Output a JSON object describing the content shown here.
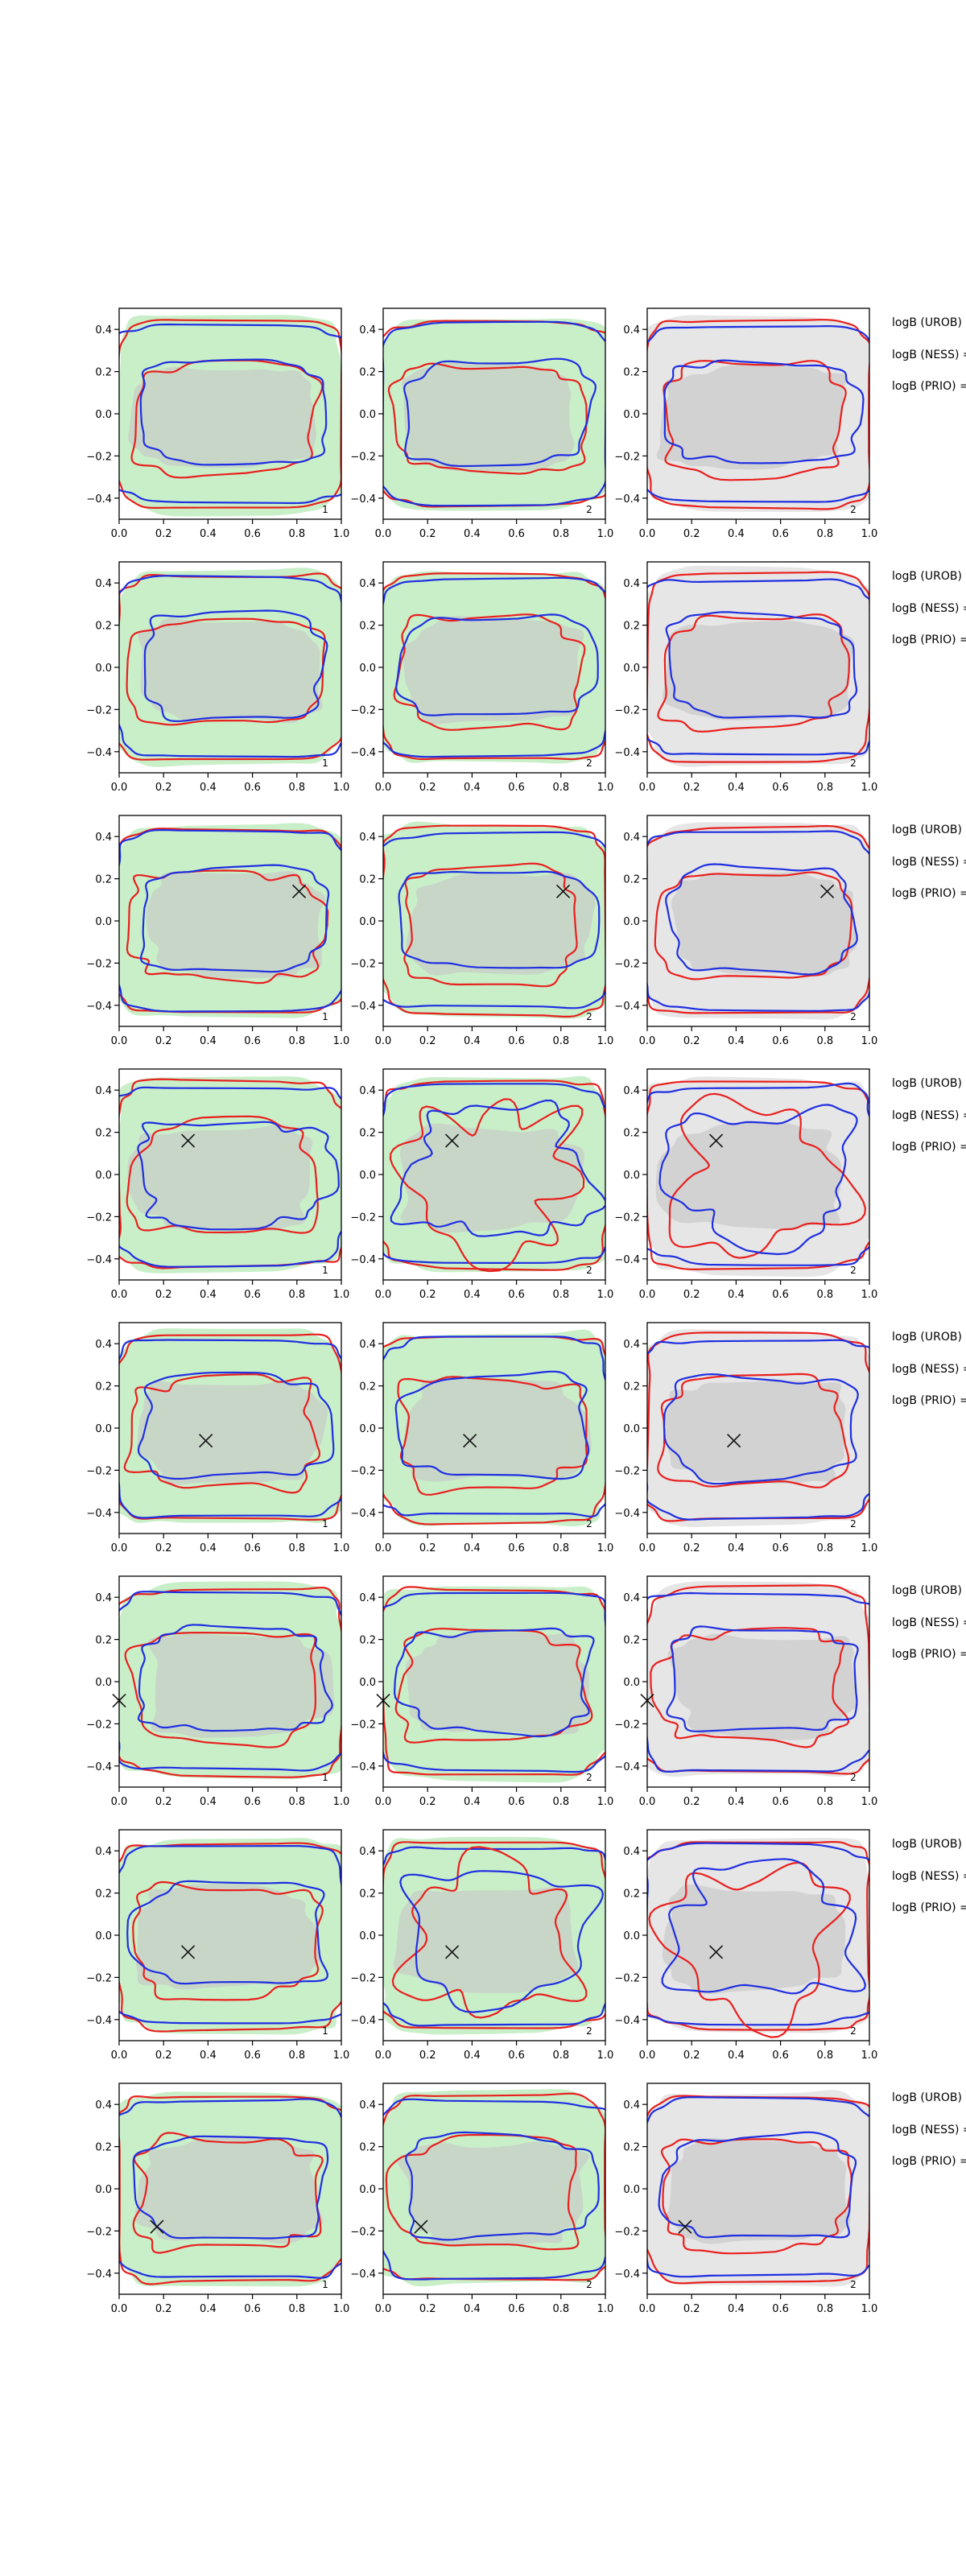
{
  "colors": {
    "shade_green": "#c9efc9",
    "shade_gray": "#e6e6e6",
    "inner_gray": "#c8c8c8",
    "contour_red": "#e8201e",
    "contour_blue": "#1f2fe0",
    "marker": "#111111",
    "axis": "#000000"
  },
  "chart_data": {
    "type": "contour-grid",
    "rows": 8,
    "columns": 3,
    "xlim": [
      0,
      1
    ],
    "ylim": [
      -0.5,
      0.5
    ],
    "x_ticks": [
      "0.0",
      "0.2",
      "0.4",
      "0.6",
      "0.8",
      "1.0"
    ],
    "y_ticks": [
      "0.4",
      "0.2",
      "0.0",
      "−0.2",
      "−0.4"
    ],
    "x_tick_values": [
      0,
      0.2,
      0.4,
      0.6,
      0.8,
      1.0
    ],
    "y_tick_values": [
      0.4,
      0.2,
      0.0,
      -0.2,
      -0.4
    ],
    "panel_tags": [
      "1",
      "2",
      "2"
    ],
    "panel_backgrounds": [
      "green",
      "green",
      "gray"
    ],
    "legend_labels": [
      "logB (UROB) =",
      "logB (NESS) =",
      "logB (PRIO) ="
    ],
    "markers": [
      null,
      null,
      {
        "x": 0.81,
        "y": 0.14
      },
      {
        "x": 0.31,
        "y": 0.16
      },
      {
        "x": 0.39,
        "y": -0.06
      },
      {
        "x": 0.0,
        "y": -0.09
      },
      {
        "x": 0.31,
        "y": -0.08
      },
      {
        "x": 0.17,
        "y": -0.18
      }
    ]
  }
}
